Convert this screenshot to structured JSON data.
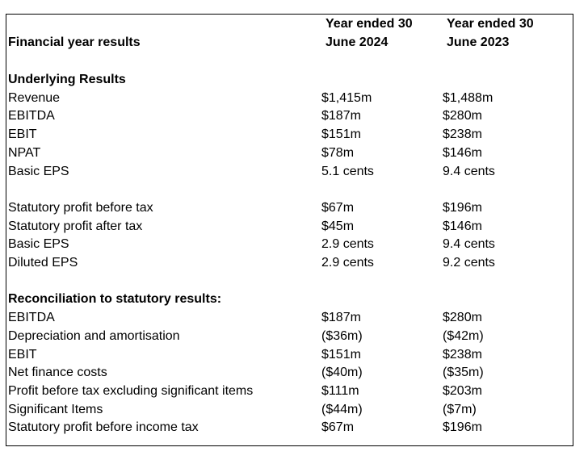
{
  "table": {
    "header": {
      "title": "Financial year results",
      "columns": [
        [
          "Year ended 30",
          "June 2024"
        ],
        [
          "Year ended 30",
          "June 2023"
        ]
      ]
    },
    "sections": [
      {
        "title": "Underlying Results",
        "rows": [
          [
            "Revenue",
            "$1,415m",
            "$1,488m"
          ],
          [
            "EBITDA",
            "$187m",
            "$280m"
          ],
          [
            "EBIT",
            "$151m",
            "$238m"
          ],
          [
            "NPAT",
            "$78m",
            "$146m"
          ],
          [
            "Basic EPS",
            "5.1 cents",
            "9.4 cents"
          ]
        ]
      },
      {
        "rows": [
          [
            "Statutory profit before tax",
            "$67m",
            "$196m"
          ],
          [
            "Statutory profit after tax",
            "$45m",
            "$146m"
          ],
          [
            "Basic EPS",
            "2.9 cents",
            "9.4 cents"
          ],
          [
            "Diluted EPS",
            "2.9 cents",
            "9.2 cents"
          ]
        ]
      },
      {
        "title": "Reconciliation to statutory results:",
        "rows": [
          [
            "EBITDA",
            "$187m",
            "$280m"
          ],
          [
            "Depreciation and amortisation",
            "($36m)",
            "($42m)"
          ],
          [
            "EBIT",
            "$151m",
            "$238m"
          ],
          [
            "Net finance costs",
            "($40m)",
            "($35m)"
          ],
          [
            "Profit before tax excluding significant items",
            "$111m",
            "$203m"
          ],
          [
            "Significant Items",
            "($44m)",
            "($7m)"
          ],
          [
            "Statutory profit before income tax",
            "$67m",
            "$196m"
          ]
        ]
      }
    ]
  }
}
